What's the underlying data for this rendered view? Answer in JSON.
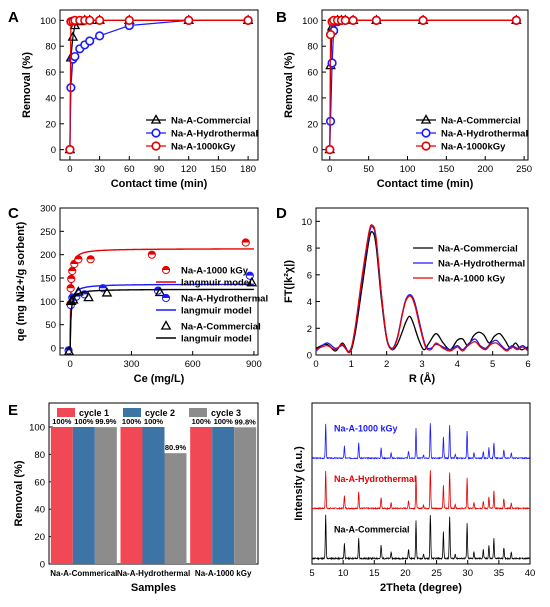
{
  "figure": {
    "background": "#ffffff"
  },
  "chart_data": [
    {
      "id": "A",
      "panel_label": "A",
      "type": "scatter",
      "xlabel": "Contact time (min)",
      "ylabel": "Removal (%)",
      "xlim": [
        -10,
        190
      ],
      "ylim": [
        -8,
        108
      ],
      "xticks": [
        0,
        30,
        60,
        90,
        120,
        150,
        180
      ],
      "yticks": [
        0,
        20,
        40,
        60,
        80,
        100
      ],
      "legend_position": "bottom-right",
      "series": [
        {
          "name": "Na-A-Commercial",
          "color": "#000000",
          "marker": "triangle",
          "x": [
            0,
            1,
            3,
            5,
            10,
            15,
            20,
            30,
            60,
            120,
            180
          ],
          "y": [
            0,
            71,
            87,
            96,
            99,
            100,
            100,
            100,
            100,
            100,
            100
          ],
          "fit": "lines"
        },
        {
          "name": "Na-A-Hydrothermal",
          "color": "#1a1aff",
          "marker": "circle",
          "x": [
            0,
            1,
            3,
            5,
            10,
            15,
            20,
            30,
            60,
            120,
            180
          ],
          "y": [
            0,
            48,
            70,
            72,
            78,
            81,
            84,
            88,
            96,
            100,
            100
          ],
          "fit": "lines"
        },
        {
          "name": "Na-A-1000kGy",
          "color": "#e60000",
          "marker": "circle",
          "x": [
            0,
            1,
            3,
            5,
            10,
            15,
            20,
            30,
            60,
            120,
            180
          ],
          "y": [
            0,
            99,
            99.5,
            100,
            100,
            100,
            100,
            100,
            100,
            100,
            100
          ],
          "fit": "lines"
        }
      ]
    },
    {
      "id": "B",
      "panel_label": "B",
      "type": "scatter",
      "xlabel": "Contact time (min)",
      "ylabel": "Removal (%)",
      "xlim": [
        -10,
        255
      ],
      "ylim": [
        -8,
        108
      ],
      "xticks": [
        0,
        50,
        100,
        150,
        200,
        250
      ],
      "yticks": [
        0,
        20,
        40,
        60,
        80,
        100
      ],
      "legend_position": "bottom-right",
      "series": [
        {
          "name": "Na-A-Commercial",
          "color": "#000000",
          "marker": "triangle",
          "x": [
            0,
            1,
            3,
            5,
            10,
            15,
            20,
            30,
            60,
            120,
            240
          ],
          "y": [
            0,
            65,
            95,
            99,
            100,
            100,
            100,
            100,
            100,
            100,
            100
          ],
          "fit": "lines"
        },
        {
          "name": "Na-A-Hydrothermal",
          "color": "#1a1aff",
          "marker": "circle",
          "x": [
            0,
            1,
            3,
            5,
            10,
            15,
            20,
            30,
            60,
            120,
            240
          ],
          "y": [
            0,
            22,
            67,
            92,
            99,
            100,
            100,
            100,
            100,
            100,
            100
          ],
          "fit": "lines"
        },
        {
          "name": "Na-A-1000kGy",
          "color": "#e60000",
          "marker": "circle",
          "x": [
            0,
            1,
            3,
            5,
            10,
            15,
            20,
            30,
            60,
            120,
            240
          ],
          "y": [
            0,
            89,
            99,
            100,
            100,
            100,
            100,
            100,
            100,
            100,
            100
          ],
          "fit": "lines"
        }
      ]
    },
    {
      "id": "C",
      "panel_label": "C",
      "type": "scatter",
      "xlabel": "Ce (mg/L)",
      "ylabel": "qe (mg Ni2+/g sorbent)",
      "xlim": [
        -50,
        920
      ],
      "ylim": [
        -15,
        300
      ],
      "xticks": [
        0,
        300,
        600,
        900
      ],
      "yticks": [
        0,
        50,
        100,
        150,
        200,
        250,
        300
      ],
      "legend_position": "right",
      "series": [
        {
          "name": "Na-A-1000 kGy",
          "color": "#e60000",
          "marker": "half-circle",
          "x": [
            0.5,
            2,
            5,
            10,
            20,
            40,
            100,
            400,
            860
          ],
          "y": [
            94,
            128,
            148,
            165,
            180,
            190,
            190,
            200,
            226
          ],
          "fit": "langmuir",
          "qmax": 213,
          "kl": 0.35,
          "fit_name": "langmuir model"
        },
        {
          "name": "Na-A-Hydrothermal",
          "color": "#1a1aff",
          "marker": "half-circle",
          "x": [
            -8,
            3,
            10,
            30,
            70,
            160,
            430,
            880
          ],
          "y": [
            -5,
            92,
            108,
            110,
            115,
            128,
            123,
            155
          ],
          "fit": "langmuir",
          "qmax": 137,
          "kl": 0.25,
          "fit_name": "langmuir model"
        },
        {
          "name": "Na-A-Commercial",
          "color": "#000000",
          "marker": "triangle",
          "x": [
            -6,
            5,
            15,
            40,
            90,
            180,
            440,
            890
          ],
          "y": [
            -8,
            100,
            103,
            120,
            108,
            118,
            119,
            140
          ],
          "fit": "langmuir",
          "qmax": 126,
          "kl": 0.3,
          "fit_name": "langmuir model"
        }
      ]
    },
    {
      "id": "D",
      "panel_label": "D",
      "type": "line",
      "xlabel": "R (Å)",
      "ylabel": "FT(|k²χ|)",
      "xlim": [
        0,
        6
      ],
      "ylim": [
        0,
        11
      ],
      "xticks": [
        0,
        1,
        2,
        3,
        4,
        5,
        6
      ],
      "yticks": [
        0,
        2,
        4,
        6,
        8,
        10
      ],
      "legend_position": "top-right",
      "series": [
        {
          "name": "Na-A-Commercial",
          "color": "#000000",
          "x": [
            0,
            0.3,
            0.55,
            0.75,
            0.95,
            1.1,
            1.3,
            1.5,
            1.6,
            1.7,
            1.85,
            2.0,
            2.15,
            2.3,
            2.45,
            2.55,
            2.65,
            2.75,
            2.9,
            3.05,
            3.2,
            3.4,
            3.6,
            3.8,
            4.0,
            4.15,
            4.3,
            4.45,
            4.6,
            4.75,
            4.9,
            5.05,
            5.2,
            5.35,
            5.5,
            5.65,
            5.8,
            6.0
          ],
          "y": [
            0.5,
            0.8,
            0.3,
            0.9,
            0.2,
            1.5,
            5.0,
            8.6,
            9.2,
            8.2,
            4.2,
            1.2,
            0.4,
            0.8,
            1.8,
            2.5,
            2.9,
            2.4,
            1.2,
            0.4,
            0.9,
            1.6,
            0.9,
            0.4,
            1.1,
            1.2,
            0.7,
            1.4,
            1.7,
            1.5,
            0.9,
            1.4,
            1.6,
            1.1,
            0.5,
            0.9,
            0.4,
            0.6
          ]
        },
        {
          "name": "Na-A-Hydrothermal",
          "color": "#1a1aff",
          "x": [
            0,
            0.3,
            0.55,
            0.75,
            0.95,
            1.1,
            1.3,
            1.5,
            1.6,
            1.7,
            1.85,
            2.0,
            2.15,
            2.3,
            2.45,
            2.55,
            2.68,
            2.8,
            2.95,
            3.1,
            3.25,
            3.4,
            3.6,
            3.8,
            4.0,
            4.15,
            4.3,
            4.5,
            4.65,
            4.8,
            4.95,
            5.1,
            5.25,
            5.4,
            5.55,
            5.7,
            5.85,
            6.0
          ],
          "y": [
            0.3,
            0.9,
            0.5,
            0.7,
            0.3,
            1.8,
            5.6,
            9.0,
            9.6,
            8.6,
            4.5,
            1.3,
            0.5,
            1.3,
            3.2,
            4.2,
            4.5,
            3.9,
            2.2,
            0.7,
            0.5,
            0.8,
            0.6,
            0.4,
            0.7,
            0.4,
            0.8,
            1.2,
            0.7,
            0.5,
            0.9,
            1.1,
            0.7,
            0.4,
            0.7,
            0.5,
            0.7,
            0.4
          ]
        },
        {
          "name": "Na-A-1000 kGy",
          "color": "#e60000",
          "x": [
            0,
            0.3,
            0.55,
            0.75,
            0.95,
            1.1,
            1.3,
            1.5,
            1.6,
            1.7,
            1.85,
            2.0,
            2.15,
            2.3,
            2.45,
            2.55,
            2.68,
            2.8,
            2.95,
            3.1,
            3.25,
            3.4,
            3.6,
            3.8,
            4.0,
            4.15,
            4.3,
            4.5,
            4.65,
            4.8,
            4.95,
            5.1,
            5.25,
            5.4,
            5.55,
            5.7,
            5.85,
            6.0
          ],
          "y": [
            0.4,
            0.7,
            0.4,
            0.8,
            0.2,
            1.9,
            5.8,
            9.2,
            9.7,
            8.8,
            4.6,
            1.3,
            0.4,
            1.2,
            3.1,
            4.1,
            4.4,
            3.7,
            2.0,
            0.6,
            0.4,
            0.9,
            0.5,
            0.3,
            0.6,
            0.3,
            0.7,
            1.0,
            0.6,
            0.4,
            0.8,
            0.9,
            0.6,
            0.3,
            0.6,
            0.4,
            0.6,
            0.3
          ]
        }
      ]
    },
    {
      "id": "E",
      "panel_label": "E",
      "type": "bar",
      "xlabel": "Samples",
      "ylabel": "Removal (%)",
      "categories": [
        "Na-A-Commerical",
        "Na-A-Hydrothermal",
        "Na-A-1000 kGy"
      ],
      "ylim": [
        0,
        100
      ],
      "yticks": [
        0,
        20,
        40,
        60,
        80,
        100
      ],
      "legend_position": "top",
      "series": [
        {
          "name": "cycle 1",
          "color": "#f04855",
          "values": [
            100,
            100,
            100
          ],
          "labels": [
            "100%",
            "100%",
            "100%"
          ]
        },
        {
          "name": "cycle 2",
          "color": "#3d74a6",
          "values": [
            100,
            100,
            100
          ],
          "labels": [
            "100%",
            "100%",
            "100%"
          ]
        },
        {
          "name": "cycle 3",
          "color": "#8c8c8c",
          "values": [
            99.9,
            80.9,
            99.8
          ],
          "labels": [
            "99.9%",
            "80.9%",
            "99.8%"
          ]
        }
      ]
    },
    {
      "id": "F",
      "panel_label": "F",
      "type": "line",
      "xlabel": "2Theta (degree)",
      "ylabel": "Intensity (a.u.)",
      "xlim": [
        5,
        40
      ],
      "xticks": [
        5,
        10,
        15,
        20,
        25,
        30,
        35,
        40
      ],
      "peaks": [
        [
          7.2,
          1.0
        ],
        [
          10.2,
          0.35
        ],
        [
          12.5,
          0.45
        ],
        [
          16.1,
          0.3
        ],
        [
          17.7,
          0.15
        ],
        [
          20.5,
          0.2
        ],
        [
          21.7,
          0.85
        ],
        [
          22.9,
          0.1
        ],
        [
          24.0,
          1.0
        ],
        [
          26.1,
          0.6
        ],
        [
          27.1,
          0.95
        ],
        [
          28.0,
          0.1
        ],
        [
          29.9,
          0.8
        ],
        [
          31.0,
          0.15
        ],
        [
          32.5,
          0.2
        ],
        [
          33.4,
          0.3
        ],
        [
          34.2,
          0.45
        ],
        [
          35.8,
          0.25
        ],
        [
          37.0,
          0.15
        ]
      ],
      "series": [
        {
          "name": "Na-A-1000 kGy",
          "color": "#1a1aff",
          "label": "Na-A-1000 kGy",
          "offset": 2.0,
          "scale": 0.55,
          "noise_seed": 3
        },
        {
          "name": "Na-A-Hydrothermal",
          "color": "#e60000",
          "label": "Na-A-Hydrothermal",
          "offset": 1.0,
          "scale": 0.6,
          "noise_seed": 7
        },
        {
          "name": "Na-A-Commercial",
          "color": "#000000",
          "label": "Na-A-Commercial",
          "offset": 0.0,
          "scale": 0.7,
          "noise_seed": 11
        }
      ]
    }
  ]
}
